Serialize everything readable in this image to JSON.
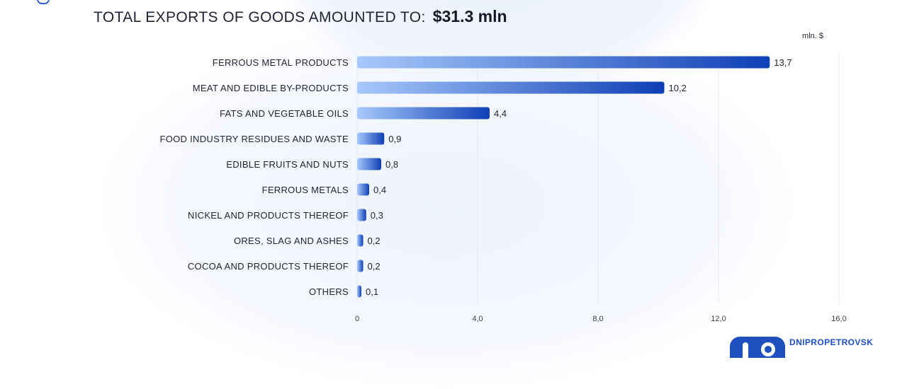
{
  "header": {
    "title": "TOTAL EXPORTS OF GOODS AMOUNTED TO:",
    "total": "$31.3 mln"
  },
  "logo": {
    "text": "DNIPROPETROVSK"
  },
  "colors": {
    "bar_start": "#a7c9fb",
    "bar_end": "#0f3fb5",
    "text": "#1f2233",
    "grid": "#e4e8f1"
  },
  "chart_data": {
    "type": "bar",
    "orientation": "horizontal",
    "unit_label": "mln. $",
    "categories": [
      "FERROUS METAL PRODUCTS",
      "MEAT AND EDIBLE BY-PRODUCTS",
      "FATS AND VEGETABLE OILS",
      "FOOD INDUSTRY RESIDUES AND WASTE",
      "EDIBLE FRUITS AND NUTS",
      "FERROUS METALS",
      "NICKEL AND PRODUCTS THEREOF",
      "ORES, SLAG AND ASHES",
      "COCOA AND PRODUCTS THEREOF",
      "OTHERS"
    ],
    "values": [
      13.7,
      10.2,
      4.4,
      0.9,
      0.8,
      0.4,
      0.3,
      0.2,
      0.2,
      0.1
    ],
    "value_labels": [
      "13,7",
      "10,2",
      "4,4",
      "0,9",
      "0,8",
      "0,4",
      "0,3",
      "0,2",
      "0,2",
      "0,1"
    ],
    "xlim": [
      0,
      16
    ],
    "xticks": [
      0,
      4,
      8,
      12,
      16
    ],
    "xtick_labels": [
      "0",
      "4,0",
      "8,0",
      "12,0",
      "16,0"
    ],
    "grid": true,
    "legend": "none"
  }
}
